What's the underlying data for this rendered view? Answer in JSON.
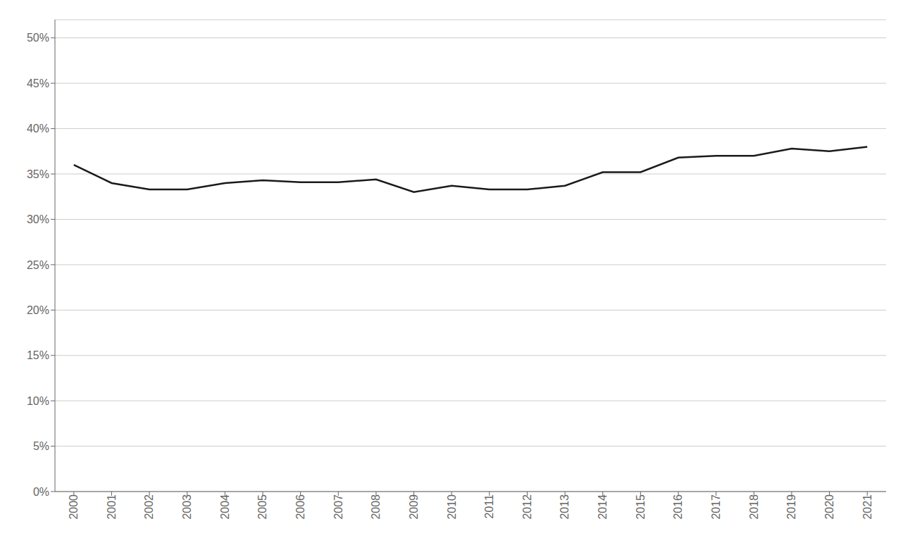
{
  "chart_data": {
    "type": "line",
    "x": [
      2000,
      2001,
      2002,
      2003,
      2004,
      2005,
      2006,
      2007,
      2008,
      2009,
      2010,
      2011,
      2012,
      2013,
      2014,
      2015,
      2016,
      2017,
      2018,
      2019,
      2020,
      2021
    ],
    "values": [
      0.36,
      0.34,
      0.333,
      0.333,
      0.34,
      0.343,
      0.341,
      0.341,
      0.344,
      0.33,
      0.337,
      0.333,
      0.333,
      0.337,
      0.352,
      0.352,
      0.368,
      0.37,
      0.37,
      0.378,
      0.375,
      0.38
    ],
    "color": "#1a1a1a",
    "xlim": [
      1999.5,
      2021.5
    ],
    "xticks": [
      2000,
      2001,
      2002,
      2003,
      2004,
      2005,
      2006,
      2007,
      2008,
      2009,
      2010,
      2011,
      2012,
      2013,
      2014,
      2015,
      2016,
      2017,
      2018,
      2019,
      2020,
      2021
    ],
    "ylim": [
      0.0,
      0.52
    ],
    "yticks": [
      {
        "value": 0.0,
        "label": "0%"
      },
      {
        "value": 0.05,
        "label": "5%"
      },
      {
        "value": 0.1,
        "label": "10%"
      },
      {
        "value": 0.15,
        "label": "15%"
      },
      {
        "value": 0.2,
        "label": "20%"
      },
      {
        "value": 0.25,
        "label": "25%"
      },
      {
        "value": 0.3,
        "label": "30%"
      },
      {
        "value": 0.35,
        "label": "35%"
      },
      {
        "value": 0.4,
        "label": "40%"
      },
      {
        "value": 0.45,
        "label": "45%"
      },
      {
        "value": 0.5,
        "label": "50%"
      }
    ],
    "grid": true
  }
}
